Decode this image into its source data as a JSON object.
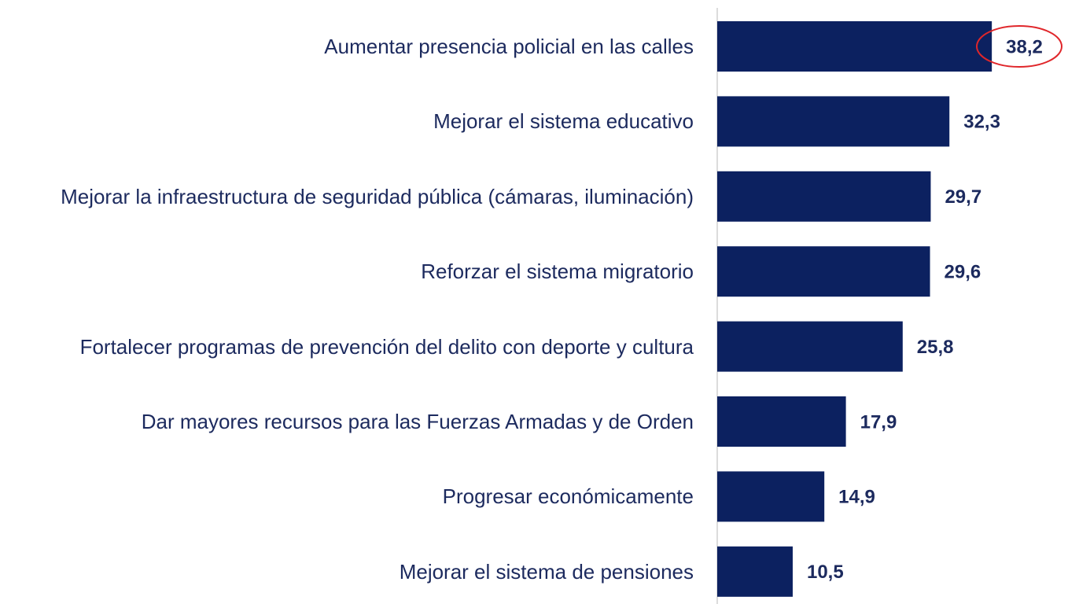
{
  "chart_data": {
    "type": "bar",
    "orientation": "horizontal",
    "categories": [
      "Aumentar presencia policial en las calles",
      "Mejorar el sistema educativo",
      "Mejorar la infraestructura de seguridad pública (cámaras, iluminación)",
      "Reforzar el sistema migratorio",
      "Fortalecer programas de prevención del delito con deporte y cultura",
      "Dar mayores recursos para las Fuerzas Armadas y de Orden",
      "Progresar económicamente",
      "Mejorar el sistema de pensiones"
    ],
    "values": [
      38.2,
      32.3,
      29.7,
      29.6,
      25.8,
      17.9,
      14.9,
      10.5
    ],
    "value_labels": [
      "38,2",
      "32,3",
      "29,7",
      "29,6",
      "25,8",
      "17,9",
      "14,9",
      "10,5"
    ],
    "color": "#0c2160",
    "xlim": [
      0,
      50
    ]
  }
}
